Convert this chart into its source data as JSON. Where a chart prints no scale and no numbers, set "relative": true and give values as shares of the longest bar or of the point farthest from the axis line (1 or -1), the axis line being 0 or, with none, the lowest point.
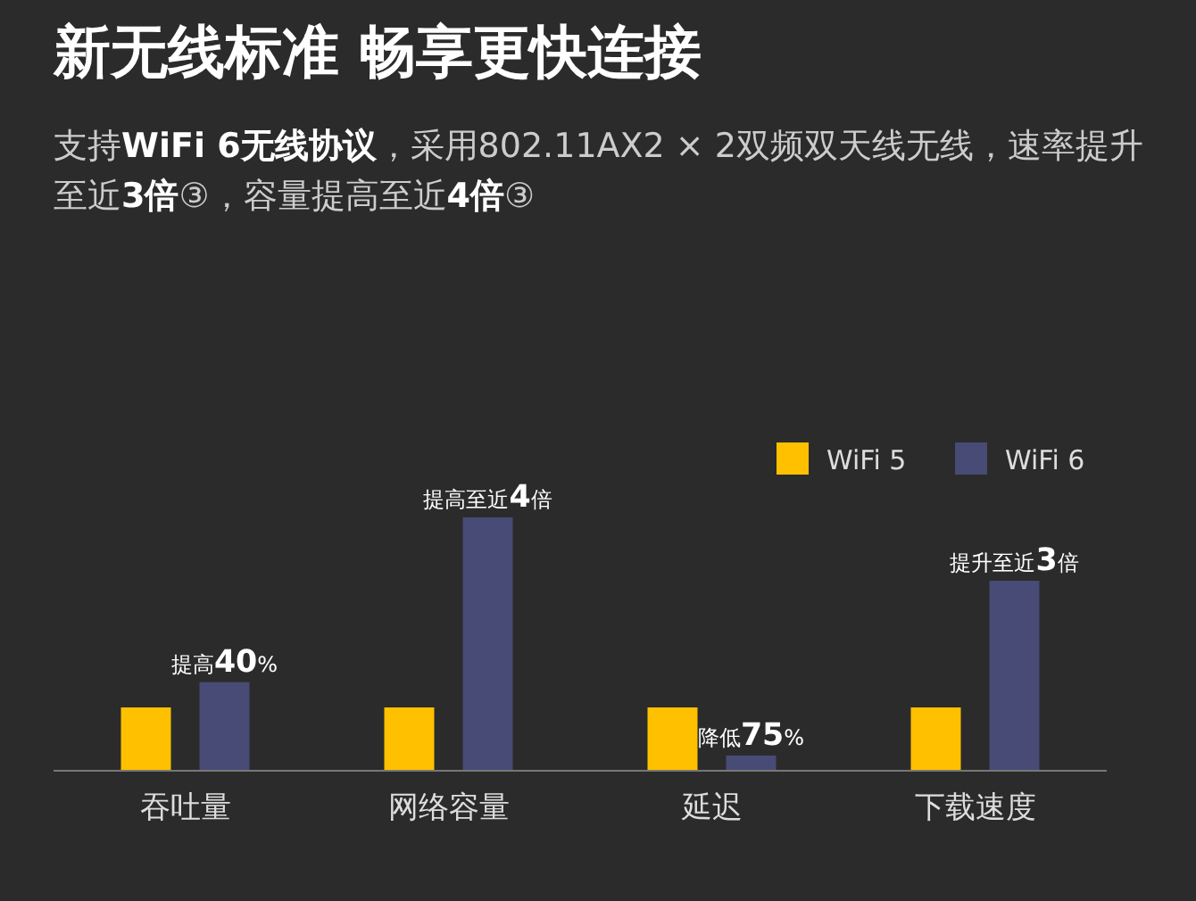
{
  "chart_data": {
    "type": "bar",
    "title": "新无线标准 畅享更快连接",
    "subtitle": "支持**WiFi 6无线协议**，采用802.11AX2 × 2双频双天线无线，速率提升至近**3倍**③，容量提高至近**4倍**③",
    "relative": true,
    "categories": [
      "吞吐量",
      "网络容量",
      "延迟",
      "下载速度"
    ],
    "series": [
      {
        "name": "WiFi 5",
        "color": "#ffc000",
        "values": [
          0.25,
          0.25,
          0.25,
          0.25
        ]
      },
      {
        "name": "WiFi 6",
        "color": "#474b75",
        "values": [
          0.35,
          1,
          0.06,
          0.75
        ]
      }
    ],
    "annotations": [
      "提高**40**%",
      "提高至近**4**倍",
      "降低**75**%",
      "提升至近**3**倍"
    ],
    "legend": "top right"
  }
}
